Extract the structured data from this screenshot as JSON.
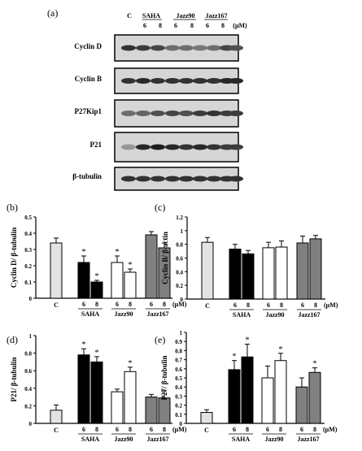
{
  "panel_a": {
    "label": "(a)",
    "header_top": [
      "C",
      "SAHA",
      "Jazz90",
      "Jazz167"
    ],
    "header_bottom": [
      "6",
      "8",
      "6",
      "8",
      "6",
      "8",
      "(μM)"
    ],
    "blots": [
      {
        "name": "Cyclin D",
        "bands": [
          0.85,
          0.8,
          0.75,
          0.55,
          0.55,
          0.5,
          0.55,
          0.75,
          0.7
        ]
      },
      {
        "name": "Cyclin B",
        "bands": [
          0.85,
          0.9,
          0.85,
          0.85,
          0.85,
          0.85,
          0.85,
          0.9,
          0.9
        ]
      },
      {
        "name": "P27Kip1",
        "bands": [
          0.55,
          0.6,
          0.7,
          0.75,
          0.7,
          0.8,
          0.85,
          0.8,
          0.8
        ]
      },
      {
        "name": "P21",
        "bands": [
          0.35,
          0.9,
          0.95,
          0.9,
          0.85,
          0.9,
          0.85,
          0.8,
          0.8
        ]
      },
      {
        "name": "β-tubulin",
        "bands": [
          0.85,
          0.85,
          0.85,
          0.85,
          0.85,
          0.85,
          0.85,
          0.85,
          0.85
        ]
      }
    ]
  },
  "colors": {
    "control": "#e3e3e3",
    "saha": "#000000",
    "jazz90": "#ffffff",
    "jazz167": "#808080"
  },
  "chart_data": [
    {
      "panel": "(b)",
      "type": "bar",
      "ylabel": "Cyclin D/ β-tubulin",
      "ylim": [
        0,
        0.5
      ],
      "yticks": [
        0,
        0.1,
        0.2,
        0.3,
        0.4,
        0.5
      ],
      "unit": "(μM)",
      "bars": [
        {
          "group": "C",
          "dose": "",
          "value": 0.34,
          "err": 0.03,
          "star": false
        },
        {
          "group": "SAHA",
          "dose": "6",
          "value": 0.22,
          "err": 0.04,
          "star": true
        },
        {
          "group": "SAHA",
          "dose": "8",
          "value": 0.1,
          "err": 0.01,
          "star": true
        },
        {
          "group": "Jazz90",
          "dose": "6",
          "value": 0.22,
          "err": 0.04,
          "star": true
        },
        {
          "group": "Jazz90",
          "dose": "8",
          "value": 0.16,
          "err": 0.02,
          "star": true
        },
        {
          "group": "Jazz167",
          "dose": "6",
          "value": 0.39,
          "err": 0.02,
          "star": false
        },
        {
          "group": "Jazz167",
          "dose": "8",
          "value": 0.31,
          "err": 0.03,
          "star": false
        }
      ]
    },
    {
      "panel": "(c)",
      "type": "bar",
      "ylabel": "Cyclin B/ β-actin",
      "ylim": [
        0,
        1.2
      ],
      "yticks": [
        0,
        0.2,
        0.4,
        0.6,
        0.8,
        1.0,
        1.2
      ],
      "unit": "(μM)",
      "bars": [
        {
          "group": "C",
          "dose": "",
          "value": 0.83,
          "err": 0.07,
          "star": false
        },
        {
          "group": "SAHA",
          "dose": "6",
          "value": 0.73,
          "err": 0.07,
          "star": false
        },
        {
          "group": "SAHA",
          "dose": "8",
          "value": 0.66,
          "err": 0.05,
          "star": false
        },
        {
          "group": "Jazz90",
          "dose": "6",
          "value": 0.75,
          "err": 0.08,
          "star": false
        },
        {
          "group": "Jazz90",
          "dose": "8",
          "value": 0.76,
          "err": 0.09,
          "star": false
        },
        {
          "group": "Jazz167",
          "dose": "6",
          "value": 0.82,
          "err": 0.1,
          "star": false
        },
        {
          "group": "Jazz167",
          "dose": "8",
          "value": 0.88,
          "err": 0.05,
          "star": false
        }
      ]
    },
    {
      "panel": "(d)",
      "type": "bar",
      "ylabel": "P21/ β-tubulin",
      "ylim": [
        0,
        1.0
      ],
      "yticks": [
        0,
        0.2,
        0.4,
        0.6,
        0.8,
        1.0
      ],
      "unit": "(μM)",
      "bars": [
        {
          "group": "C",
          "dose": "",
          "value": 0.15,
          "err": 0.06,
          "star": false
        },
        {
          "group": "SAHA",
          "dose": "6",
          "value": 0.78,
          "err": 0.07,
          "star": true
        },
        {
          "group": "SAHA",
          "dose": "8",
          "value": 0.7,
          "err": 0.06,
          "star": true
        },
        {
          "group": "Jazz90",
          "dose": "6",
          "value": 0.36,
          "err": 0.03,
          "star": false
        },
        {
          "group": "Jazz90",
          "dose": "8",
          "value": 0.59,
          "err": 0.05,
          "star": true
        },
        {
          "group": "Jazz167",
          "dose": "6",
          "value": 0.3,
          "err": 0.03,
          "star": false
        },
        {
          "group": "Jazz167",
          "dose": "8",
          "value": 0.29,
          "err": 0.08,
          "star": false
        }
      ]
    },
    {
      "panel": "(e)",
      "type": "bar",
      "ylabel": "P27/ β-tubulin",
      "ylim": [
        0,
        1.0
      ],
      "yticks": [
        0,
        0.1,
        0.2,
        0.3,
        0.4,
        0.5,
        0.6,
        0.7,
        0.8,
        0.9,
        1.0
      ],
      "unit": "(μM)",
      "bars": [
        {
          "group": "C",
          "dose": "",
          "value": 0.12,
          "err": 0.03,
          "star": false
        },
        {
          "group": "SAHA",
          "dose": "6",
          "value": 0.59,
          "err": 0.1,
          "star": true
        },
        {
          "group": "SAHA",
          "dose": "8",
          "value": 0.73,
          "err": 0.14,
          "star": true
        },
        {
          "group": "Jazz90",
          "dose": "6",
          "value": 0.5,
          "err": 0.13,
          "star": false
        },
        {
          "group": "Jazz90",
          "dose": "8",
          "value": 0.69,
          "err": 0.08,
          "star": true
        },
        {
          "group": "Jazz167",
          "dose": "6",
          "value": 0.4,
          "err": 0.1,
          "star": false
        },
        {
          "group": "Jazz167",
          "dose": "8",
          "value": 0.56,
          "err": 0.05,
          "star": true
        }
      ]
    }
  ]
}
